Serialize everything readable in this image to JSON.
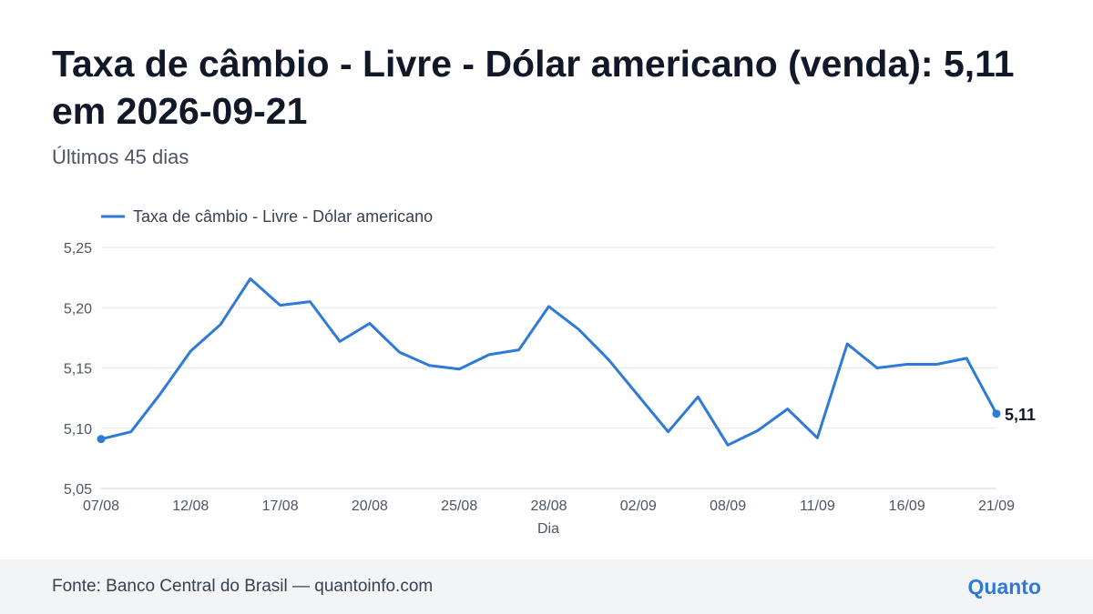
{
  "header": {
    "title": "Taxa de câmbio - Livre - Dólar americano (venda): 5,11 em 2026-09-21",
    "subtitle": "Últimos 45 dias"
  },
  "footer": {
    "source": "Fonte: Banco Central do Brasil — quantoinfo.com",
    "brand": "Quanto"
  },
  "colors": {
    "line": "#2f7ad6",
    "grid": "#e5e7eb"
  },
  "chart_data": {
    "type": "line",
    "xlabel": "Dia",
    "ylabel": "",
    "ylim": [
      5.05,
      5.25
    ],
    "yticks": [
      5.05,
      5.1,
      5.15,
      5.2,
      5.25
    ],
    "ytick_labels": [
      "5,05",
      "5,10",
      "5,15",
      "5,20",
      "5,25"
    ],
    "xtick_labels": [
      "07/08",
      "12/08",
      "17/08",
      "20/08",
      "25/08",
      "28/08",
      "02/09",
      "08/09",
      "11/09",
      "16/09",
      "21/09"
    ],
    "xtick_index": [
      0,
      3,
      6,
      9,
      12,
      15,
      18,
      21,
      24,
      27,
      30
    ],
    "grid": true,
    "legend_position": "top-left",
    "last_value_label": "5,11",
    "series": [
      {
        "name": "Taxa de câmbio - Livre - Dólar americano",
        "values": [
          5.091,
          5.097,
          5.129,
          5.164,
          5.186,
          5.224,
          5.202,
          5.205,
          5.172,
          5.187,
          5.163,
          5.152,
          5.149,
          5.161,
          5.165,
          5.201,
          5.182,
          5.157,
          5.127,
          5.097,
          5.126,
          5.086,
          5.098,
          5.116,
          5.092,
          5.17,
          5.15,
          5.153,
          5.153,
          5.158,
          5.112
        ]
      }
    ]
  }
}
